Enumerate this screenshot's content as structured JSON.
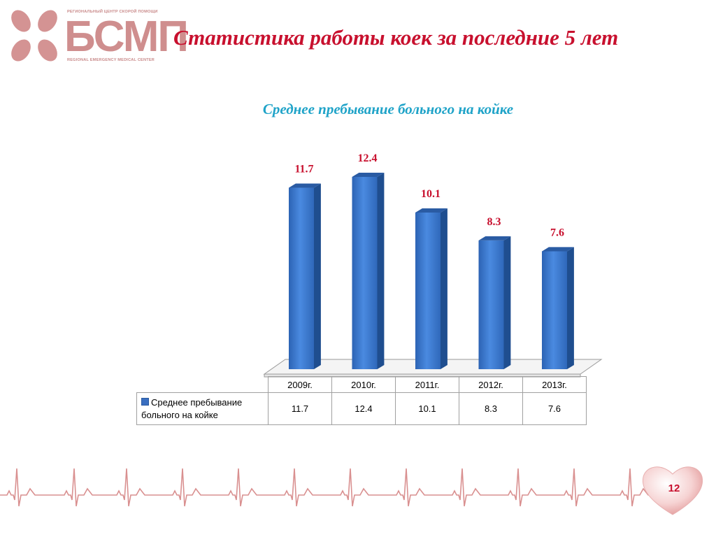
{
  "logo": {
    "top_text": "РЕГИОНАЛЬНЫЙ ЦЕНТР СКОРОЙ ПОМОЩИ",
    "main_text": "БСМП",
    "bottom_text": "REGIONAL EMERGENCY MEDICAL CENTER",
    "color": "#cf8e8e"
  },
  "slide": {
    "title": "Статистика работы коек за последние 5 лет",
    "page_number": "12"
  },
  "chart_data": {
    "type": "bar",
    "style": "3d-columns",
    "title": "Среднее пребывание больного на койке",
    "categories": [
      "2009г.",
      "2010г.",
      "2011г.",
      "2012г.",
      "2013г."
    ],
    "series": [
      {
        "name": "Среднее пребывание больного на койке",
        "values": [
          11.7,
          12.4,
          10.1,
          8.3,
          7.6
        ],
        "color": "#3a7bd0"
      }
    ],
    "data_labels": [
      "11.7",
      "12.4",
      "10.1",
      "8.3",
      "7.6"
    ],
    "data_label_color": "#c8102e",
    "ylim": [
      0,
      12.4
    ],
    "grid": false,
    "legend": "data-table-below"
  },
  "table": {
    "headers": [
      "2009г.",
      "2010г.",
      "2011г.",
      "2012г.",
      "2013г."
    ],
    "legend_label": "Среднее пребывание\nбольного на койке",
    "values": [
      "11.7",
      "12.4",
      "10.1",
      "8.3",
      "7.6"
    ]
  },
  "colors": {
    "title_red": "#c8102e",
    "chart_title_blue": "#1fa3c8",
    "ecg_line": "#d99090"
  }
}
